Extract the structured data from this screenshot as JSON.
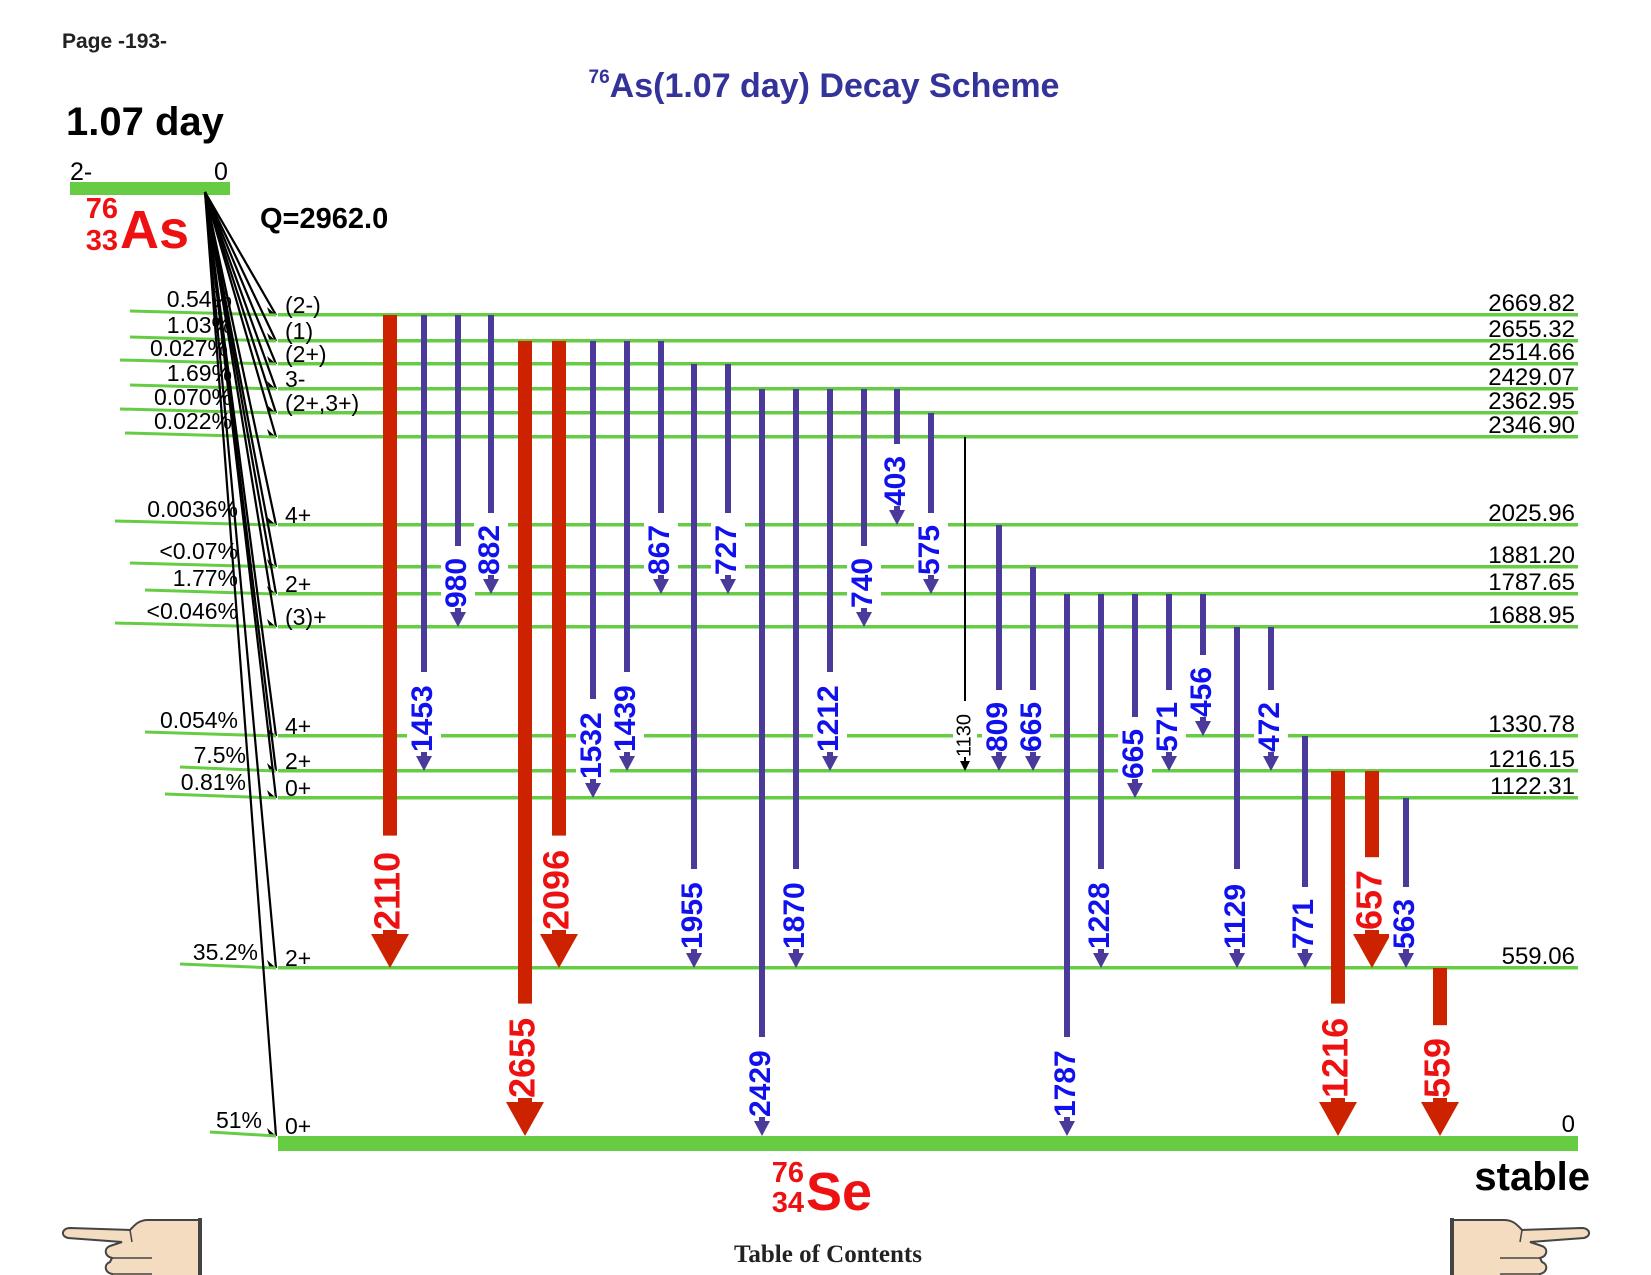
{
  "page_label": "Page -193-",
  "title": {
    "mass_sup": "76",
    "text": "As(1.07 day) Decay Scheme"
  },
  "parent": {
    "half_life": "1.07 day",
    "spin": "2-",
    "energy": "0",
    "mass": "76",
    "z": "33",
    "symbol": "As",
    "q_value": "Q=2962.0"
  },
  "daughter": {
    "mass": "76",
    "z": "34",
    "symbol": "Se",
    "stability": "stable"
  },
  "footer": {
    "toc_label": "Table of Contents"
  },
  "icons": {
    "previous": "pointing-hand-left-icon",
    "next": "pointing-hand-right-icon"
  },
  "colors": {
    "level_line": "#66cc44",
    "strong_gamma": "#cc2200",
    "weak_gamma": "#4b3a9a",
    "strong_label": "#ee1111",
    "weak_label": "#1111ee",
    "nuclide_label": "#ee1111",
    "title": "#333399"
  },
  "levels": [
    {
      "energy": "2669.82",
      "spin": "(2-)",
      "beta": "0.54%"
    },
    {
      "energy": "2655.32",
      "spin": "(1)",
      "beta": "1.03%"
    },
    {
      "energy": "2514.66",
      "spin": "(2+)",
      "beta": "0.027%"
    },
    {
      "energy": "2429.07",
      "spin": "3-",
      "beta": "1.69%"
    },
    {
      "energy": "2362.95",
      "spin": "(2+,3+)",
      "beta": "0.070%"
    },
    {
      "energy": "2346.90",
      "spin": "",
      "beta": "0.022%"
    },
    {
      "energy": "2025.96",
      "spin": "4+",
      "beta": "0.0036%"
    },
    {
      "energy": "1881.20",
      "spin": "",
      "beta": "<0.07%"
    },
    {
      "energy": "1787.65",
      "spin": "2+",
      "beta": "1.77%"
    },
    {
      "energy": "1688.95",
      "spin": "(3)+",
      "beta": "<0.046%"
    },
    {
      "energy": "1330.78",
      "spin": "4+",
      "beta": "0.054%"
    },
    {
      "energy": "1216.15",
      "spin": "2+",
      "beta": "7.5%"
    },
    {
      "energy": "1122.31",
      "spin": "0+",
      "beta": "0.81%"
    },
    {
      "energy": "559.06",
      "spin": "2+",
      "beta": "35.2%"
    },
    {
      "energy": "0",
      "spin": "0+",
      "beta": "51%"
    }
  ],
  "gammas": [
    {
      "label": "2110",
      "from": 0,
      "to": 13,
      "style": "strong"
    },
    {
      "label": "1453",
      "from": 0,
      "to": 11,
      "style": "weak"
    },
    {
      "label": "980",
      "from": 0,
      "to": 9,
      "style": "weak"
    },
    {
      "label": "882",
      "from": 0,
      "to": 8,
      "style": "weak"
    },
    {
      "label": "2655",
      "from": 1,
      "to": 14,
      "style": "strong"
    },
    {
      "label": "2096",
      "from": 1,
      "to": 13,
      "style": "strong"
    },
    {
      "label": "1532",
      "from": 1,
      "to": 12,
      "style": "weak"
    },
    {
      "label": "1439",
      "from": 1,
      "to": 11,
      "style": "weak"
    },
    {
      "label": "867",
      "from": 1,
      "to": 8,
      "style": "weak"
    },
    {
      "label": "1955",
      "from": 2,
      "to": 13,
      "style": "weak"
    },
    {
      "label": "727",
      "from": 2,
      "to": 8,
      "style": "weak"
    },
    {
      "label": "2429",
      "from": 3,
      "to": 14,
      "style": "weak"
    },
    {
      "label": "1870",
      "from": 3,
      "to": 13,
      "style": "weak"
    },
    {
      "label": "1212",
      "from": 3,
      "to": 11,
      "style": "weak"
    },
    {
      "label": "740",
      "from": 3,
      "to": 9,
      "style": "weak"
    },
    {
      "label": "403",
      "from": 3,
      "to": 6,
      "style": "weak"
    },
    {
      "label": "575",
      "from": 4,
      "to": 8,
      "style": "weak"
    },
    {
      "label": "1130",
      "from": 5,
      "to": 11,
      "style": "thin"
    },
    {
      "label": "809",
      "from": 6,
      "to": 11,
      "style": "weak"
    },
    {
      "label": "665",
      "from": 7,
      "to": 11,
      "style": "weak"
    },
    {
      "label": "1787",
      "from": 8,
      "to": 14,
      "style": "weak"
    },
    {
      "label": "1228",
      "from": 8,
      "to": 13,
      "style": "weak"
    },
    {
      "label": "665",
      "from": 8,
      "to": 12,
      "style": "weak"
    },
    {
      "label": "571",
      "from": 8,
      "to": 11,
      "style": "weak"
    },
    {
      "label": "456",
      "from": 8,
      "to": 10,
      "style": "weak"
    },
    {
      "label": "1129",
      "from": 9,
      "to": 13,
      "style": "weak"
    },
    {
      "label": "472",
      "from": 9,
      "to": 11,
      "style": "weak"
    },
    {
      "label": "771",
      "from": 10,
      "to": 13,
      "style": "weak"
    },
    {
      "label": "1216",
      "from": 11,
      "to": 14,
      "style": "strong"
    },
    {
      "label": "657",
      "from": 11,
      "to": 13,
      "style": "strong"
    },
    {
      "label": "563",
      "from": 12,
      "to": 13,
      "style": "weak"
    },
    {
      "label": "559",
      "from": 13,
      "to": 14,
      "style": "strong"
    }
  ]
}
